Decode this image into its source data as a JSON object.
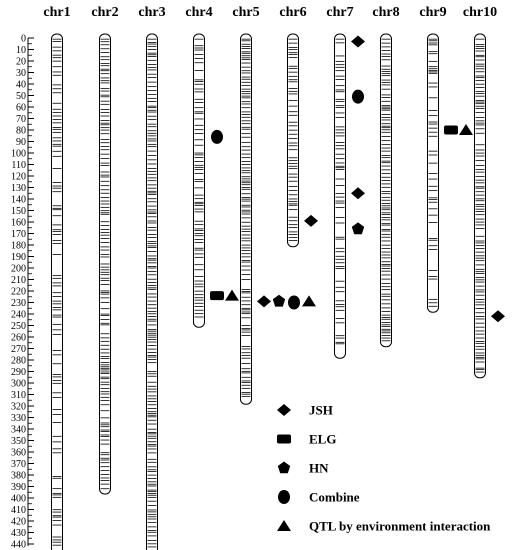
{
  "chart_data": {
    "type": "genetic-linkage-map",
    "axis": {
      "min": 0,
      "max": 440,
      "step": 10,
      "unit": ""
    },
    "chromosomes": [
      {
        "name": "chr1",
        "length": 445,
        "marker_seed": 11,
        "density": 0.55
      },
      {
        "name": "chr2",
        "length": 393,
        "marker_seed": 23,
        "density": 0.85
      },
      {
        "name": "chr3",
        "length": 445,
        "marker_seed": 37,
        "density": 0.95
      },
      {
        "name": "chr4",
        "length": 248,
        "marker_seed": 41,
        "density": 0.75
      },
      {
        "name": "chr5",
        "length": 315,
        "marker_seed": 53,
        "density": 0.9
      },
      {
        "name": "chr6",
        "length": 178,
        "marker_seed": 61,
        "density": 0.8
      },
      {
        "name": "chr7",
        "length": 275,
        "marker_seed": 71,
        "density": 0.6
      },
      {
        "name": "chr8",
        "length": 265,
        "marker_seed": 83,
        "density": 0.95
      },
      {
        "name": "chr9",
        "length": 235,
        "marker_seed": 97,
        "density": 0.5
      },
      {
        "name": "chr10",
        "length": 292,
        "marker_seed": 101,
        "density": 0.9
      }
    ],
    "qtls": [
      {
        "chr": "chr4",
        "pos": 86,
        "type": "combine"
      },
      {
        "chr": "chr4",
        "pos": 224,
        "type": "elg"
      },
      {
        "chr": "chr4",
        "pos": 224,
        "type": "qxe"
      },
      {
        "chr": "chr5",
        "pos": 229,
        "type": "jsh"
      },
      {
        "chr": "chr5",
        "pos": 229,
        "type": "hn"
      },
      {
        "chr": "chr5",
        "pos": 230,
        "type": "combine"
      },
      {
        "chr": "chr5",
        "pos": 229,
        "type": "qxe"
      },
      {
        "chr": "chr6",
        "pos": 159,
        "type": "jsh"
      },
      {
        "chr": "chr7",
        "pos": 3,
        "type": "jsh"
      },
      {
        "chr": "chr7",
        "pos": 51,
        "type": "combine"
      },
      {
        "chr": "chr7",
        "pos": 135,
        "type": "jsh"
      },
      {
        "chr": "chr7",
        "pos": 166,
        "type": "hn"
      },
      {
        "chr": "chr9",
        "pos": 80,
        "type": "elg"
      },
      {
        "chr": "chr9",
        "pos": 80,
        "type": "qxe"
      },
      {
        "chr": "chr10",
        "pos": 242,
        "type": "jsh"
      }
    ],
    "legend": [
      {
        "type": "jsh",
        "label": "JSH"
      },
      {
        "type": "elg",
        "label": "ELG"
      },
      {
        "type": "hn",
        "label": "HN"
      },
      {
        "type": "combine",
        "label": "Combine"
      },
      {
        "type": "qxe",
        "label": "QTL by environment interaction"
      }
    ],
    "colors": {
      "ink": "#000000",
      "background": "#ffffff"
    }
  }
}
